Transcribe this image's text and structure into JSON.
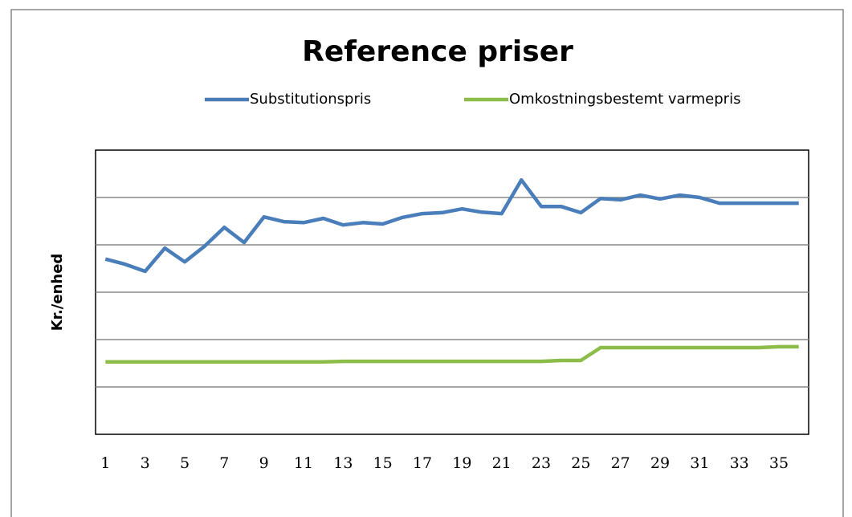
{
  "chart_data": {
    "type": "line",
    "title": "Reference priser",
    "ylabel": "Kr./enhed",
    "x": [
      1,
      2,
      3,
      4,
      5,
      6,
      7,
      8,
      9,
      10,
      11,
      12,
      13,
      14,
      15,
      16,
      17,
      18,
      19,
      20,
      21,
      22,
      23,
      24,
      25,
      26,
      27,
      28,
      29,
      30,
      31,
      32,
      33,
      34,
      35,
      36
    ],
    "xlim": [
      0.5,
      36.5
    ],
    "xticks": [
      1,
      3,
      5,
      7,
      9,
      11,
      13,
      15,
      17,
      19,
      21,
      23,
      25,
      27,
      29,
      31,
      33,
      35
    ],
    "ylim": [
      0,
      6
    ],
    "yticks": [
      1,
      2,
      3,
      4,
      5
    ],
    "grid": true,
    "series": [
      {
        "name": "Substitutionspris",
        "color": "#4a7ebb",
        "values": [
          3.7,
          3.59,
          3.44,
          3.93,
          3.64,
          3.97,
          4.37,
          4.05,
          4.59,
          4.49,
          4.47,
          4.56,
          4.42,
          4.47,
          4.44,
          4.58,
          4.66,
          4.68,
          4.76,
          4.69,
          4.66,
          5.37,
          4.81,
          4.81,
          4.68,
          4.98,
          4.95,
          5.05,
          4.97,
          5.05,
          5.0,
          4.88,
          4.88,
          4.88,
          4.88,
          4.88
        ]
      },
      {
        "name": "Omkostningsbestemt varmepris",
        "color": "#8cbd4a",
        "values": [
          1.53,
          1.53,
          1.53,
          1.53,
          1.53,
          1.53,
          1.53,
          1.53,
          1.53,
          1.53,
          1.53,
          1.53,
          1.54,
          1.54,
          1.54,
          1.54,
          1.54,
          1.54,
          1.54,
          1.54,
          1.54,
          1.54,
          1.54,
          1.56,
          1.56,
          1.83,
          1.83,
          1.83,
          1.83,
          1.83,
          1.83,
          1.83,
          1.83,
          1.83,
          1.85,
          1.85
        ]
      }
    ]
  }
}
